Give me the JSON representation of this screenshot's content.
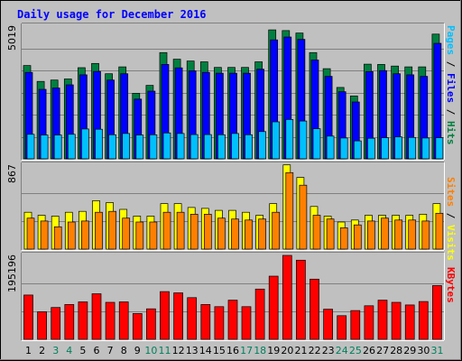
{
  "chart_data": {
    "type": "bar",
    "title": "Daily usage for December 2016",
    "categories": [
      "1",
      "2",
      "3",
      "4",
      "5",
      "6",
      "7",
      "8",
      "9",
      "10",
      "11",
      "12",
      "13",
      "14",
      "15",
      "16",
      "17",
      "18",
      "19",
      "20",
      "21",
      "22",
      "23",
      "24",
      "25",
      "26",
      "27",
      "28",
      "29",
      "30",
      "31"
    ],
    "weekend_days": [
      "3",
      "4",
      "10",
      "11",
      "17",
      "18",
      "24",
      "25",
      "31"
    ],
    "panels": [
      {
        "name": "hits-files-pages",
        "ymax_label": "5019",
        "ymax": 5019,
        "right_label_parts": [
          "Pages",
          " / ",
          "Files",
          " / ",
          "Hits"
        ],
        "series": [
          {
            "name": "Hits",
            "color": "#008040",
            "values": [
              3530,
              2930,
              2980,
              3020,
              3450,
              3610,
              3220,
              3480,
              2480,
              2780,
              4020,
              3770,
              3700,
              3670,
              3460,
              3460,
              3460,
              3670,
              4880,
              4850,
              4760,
              4020,
              3410,
              2700,
              2380,
              3580,
              3570,
              3510,
              3480,
              3480,
              4720
            ]
          },
          {
            "name": "Files",
            "color": "#0000ff",
            "values": [
              3270,
              2630,
              2680,
              2800,
              3180,
              3310,
              2980,
              3220,
              2260,
              2560,
              3570,
              3440,
              3330,
              3270,
              3240,
              3240,
              3240,
              3390,
              4500,
              4610,
              4520,
              3740,
              3120,
              2540,
              2150,
              3300,
              3340,
              3220,
              3180,
              3120,
              4370
            ]
          },
          {
            "name": "Pages",
            "color": "#00c0ff",
            "values": [
              930,
              900,
              900,
              930,
              1130,
              1120,
              910,
              960,
              900,
              910,
              980,
              960,
              920,
              920,
              910,
              960,
              910,
              1030,
              1400,
              1490,
              1430,
              1140,
              860,
              790,
              680,
              780,
              800,
              830,
              810,
              790,
              800
            ]
          }
        ]
      },
      {
        "name": "visits-sites",
        "ymax_label": "867",
        "ymax": 867,
        "right_label_parts": [
          "Sites",
          " / ",
          "Visits"
        ],
        "series": [
          {
            "name": "Visits",
            "color": "#ffff00",
            "values": [
              380,
              350,
              340,
              380,
              390,
              500,
              480,
              410,
              340,
              340,
              470,
              470,
              430,
              420,
              400,
              400,
              380,
              350,
              470,
              870,
              740,
              440,
              340,
              280,
              300,
              350,
              350,
              350,
              350,
              360,
              470
            ]
          },
          {
            "name": "Sites",
            "color": "#ff8000",
            "values": [
              320,
              290,
              230,
              280,
              290,
              380,
              390,
              320,
              280,
              280,
              380,
              380,
              360,
              360,
              320,
              310,
              300,
              310,
              380,
              790,
              660,
              350,
              310,
              220,
              250,
              290,
              320,
              300,
              300,
              290,
              370
            ]
          }
        ]
      },
      {
        "name": "kbytes",
        "ymax_label": "195196",
        "ymax": 195196,
        "right_label_parts": [
          "KBytes"
        ],
        "series": [
          {
            "name": "KBytes",
            "color": "#ff0000",
            "values": [
              103000,
              64000,
              74000,
              81000,
              87000,
              106000,
              86000,
              87000,
              60000,
              71000,
              111000,
              108000,
              97000,
              81000,
              76000,
              91000,
              76000,
              117000,
              147000,
              195196,
              184000,
              140000,
              70000,
              55000,
              67000,
              78000,
              91000,
              86000,
              80000,
              88000,
              125000
            ]
          }
        ]
      }
    ]
  },
  "colors": {
    "background": "#c0c0c0",
    "plot_background": "#c0c0c0",
    "title": "#0000ff",
    "weekday_label": "#000000",
    "weekend_label": "#00805c",
    "grid": "#808080"
  }
}
